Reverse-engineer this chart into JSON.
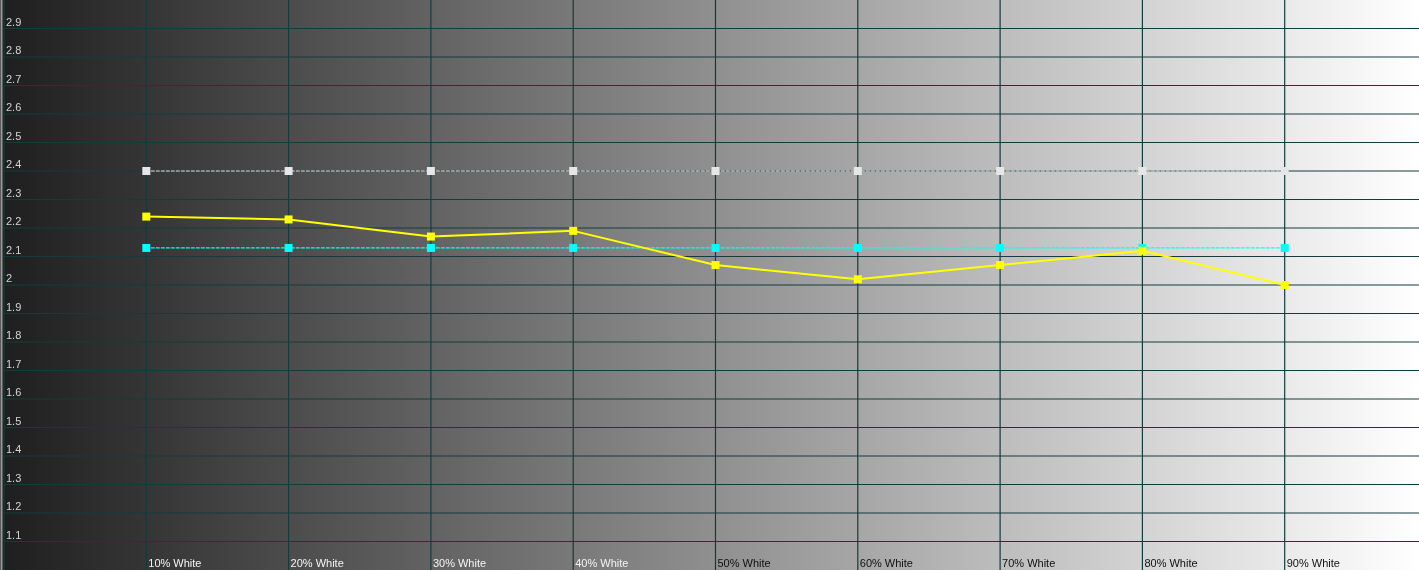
{
  "chart_data": {
    "type": "line",
    "categories": [
      "10% White",
      "20% White",
      "30% White",
      "40% White",
      "50% White",
      "60% White",
      "70% White",
      "80% White",
      "90% White"
    ],
    "series": [
      {
        "color": "#e6e6e6",
        "line_style": "dashed",
        "values": [
          2.4,
          2.4,
          2.4,
          2.4,
          2.4,
          2.4,
          2.4,
          2.4,
          2.4
        ]
      },
      {
        "color": "#00ffff",
        "line_style": "dashed",
        "values": [
          2.13,
          2.13,
          2.13,
          2.13,
          2.13,
          2.13,
          2.13,
          2.13,
          2.13
        ]
      },
      {
        "color": "#ffff00",
        "line_style": "solid",
        "values": [
          2.24,
          2.23,
          2.17,
          2.19,
          2.07,
          2.02,
          2.07,
          2.12,
          2.0
        ]
      }
    ],
    "ylim": [
      1,
      3
    ],
    "yticks": [
      1.1,
      1.2,
      1.3,
      1.4,
      1.5,
      1.6,
      1.7,
      1.8,
      1.9,
      2,
      2.1,
      2.2,
      2.3,
      2.4,
      2.5,
      2.6,
      2.7,
      2.8,
      2.9
    ],
    "grid": true,
    "marker": "square"
  }
}
